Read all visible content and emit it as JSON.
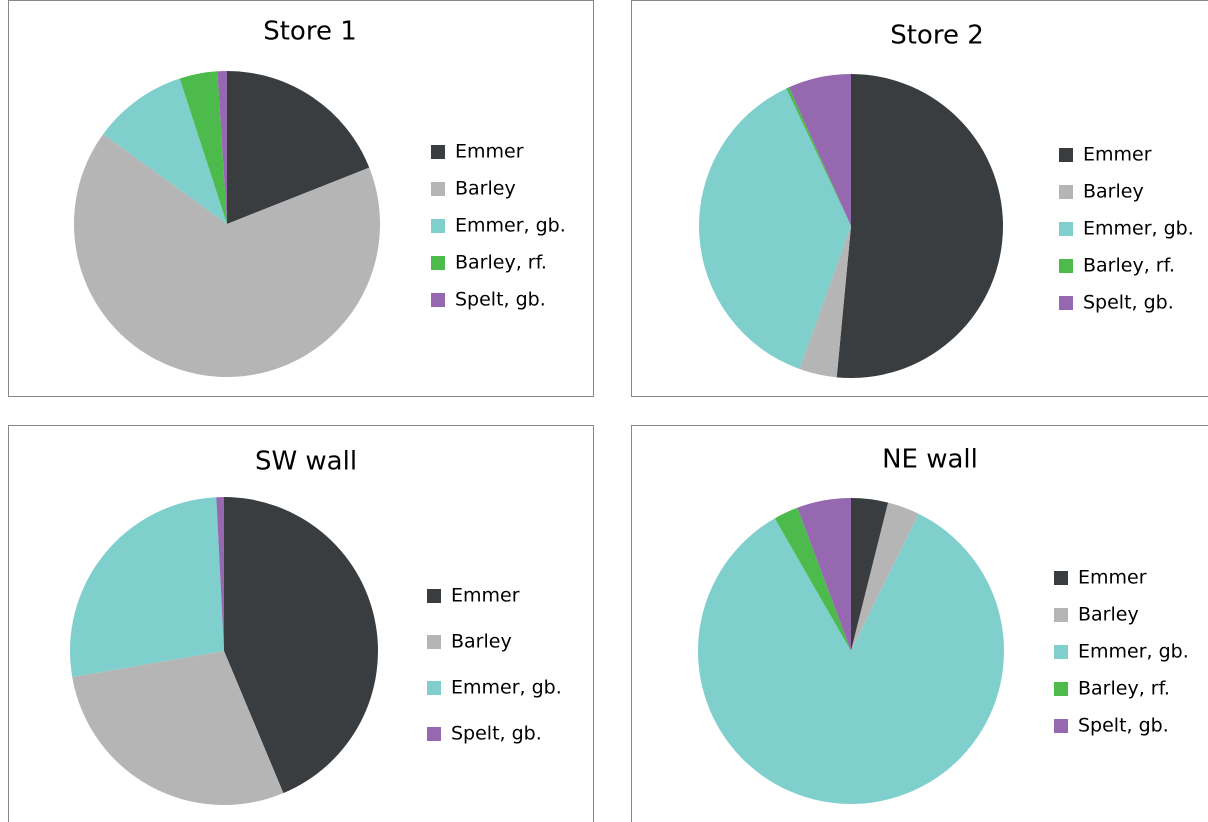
{
  "chart_data": [
    {
      "type": "pie",
      "title": "Store 1",
      "categories": [
        "Emmer",
        "Barley",
        "Emmer, gb.",
        "Barley, rf.",
        "Spelt, gb."
      ],
      "values": [
        19,
        66,
        10,
        4,
        1
      ],
      "colors": [
        "#3a3d40",
        "#b5b5b6",
        "#7fcfcd",
        "#4dbb4c",
        "#9668b0"
      ]
    },
    {
      "type": "pie",
      "title": "Store 2",
      "categories": [
        "Emmer",
        "Barley",
        "Emmer, gb.",
        "Barley, rf.",
        "Spelt, gb."
      ],
      "values": [
        51.5,
        4,
        37.5,
        0.3,
        6.7
      ],
      "colors": [
        "#3a3d40",
        "#b5b5b6",
        "#7fcfcd",
        "#4dbb4c",
        "#9668b0"
      ]
    },
    {
      "type": "pie",
      "title": "SW wall",
      "categories": [
        "Emmer",
        "Barley",
        "Emmer, gb.",
        "Spelt, gb."
      ],
      "values": [
        43.7,
        28.6,
        26.9,
        0.8
      ],
      "colors": [
        "#3a3d40",
        "#b5b5b6",
        "#7fcfcd",
        "#9668b0"
      ]
    },
    {
      "type": "pie",
      "title": "NE wall",
      "categories": [
        "Emmer",
        "Barley",
        "Emmer, gb.",
        "Barley, rf.",
        "Spelt, gb."
      ],
      "values": [
        3.9,
        3.4,
        84.4,
        2.6,
        5.7
      ],
      "colors": [
        "#3a3d40",
        "#b5b5b6",
        "#7fcfcd",
        "#4dbb4c",
        "#9668b0"
      ]
    }
  ]
}
